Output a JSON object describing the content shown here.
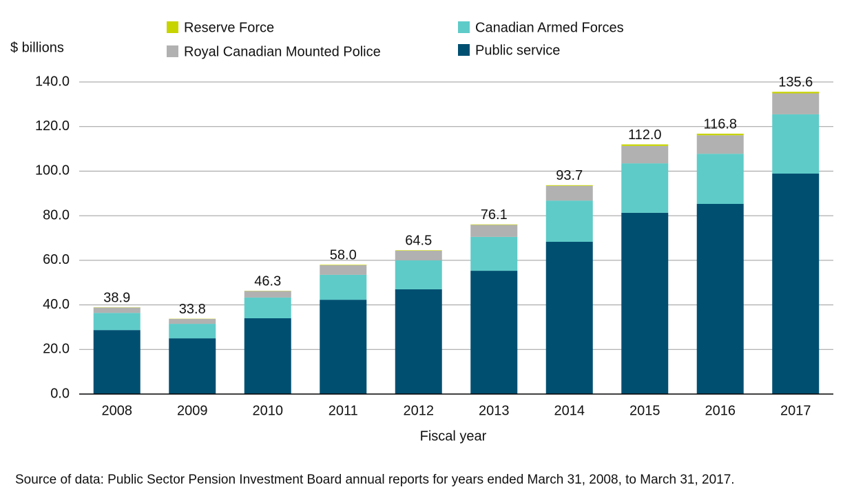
{
  "chart_data": {
    "type": "stacked-bar",
    "y_axis_label": "$ billions",
    "x_axis_label": "Fiscal year",
    "source": "Source of data: Public Sector Pension Investment Board annual reports for years ended March 31, 2008, to March 31, 2017.",
    "categories": [
      "2008",
      "2009",
      "2010",
      "2011",
      "2012",
      "2013",
      "2014",
      "2015",
      "2016",
      "2017"
    ],
    "series": [
      {
        "name": "Public service",
        "color": "#004f71",
        "values": [
          28.7,
          25.0,
          34.0,
          42.3,
          47.0,
          55.3,
          68.3,
          81.3,
          85.3,
          98.9
        ]
      },
      {
        "name": "Canadian Armed Forces",
        "color": "#5ecbc8",
        "values": [
          7.7,
          6.5,
          9.3,
          11.2,
          13.0,
          15.2,
          18.5,
          22.2,
          22.5,
          26.6
        ]
      },
      {
        "name": "Royal Canadian Mounted Police",
        "color": "#b1b1b1",
        "values": [
          2.4,
          2.2,
          2.9,
          4.3,
          4.3,
          5.4,
          6.6,
          7.8,
          8.3,
          9.4
        ]
      },
      {
        "name": "Reserve Force",
        "color": "#c8d400",
        "values": [
          0.1,
          0.1,
          0.1,
          0.2,
          0.2,
          0.2,
          0.3,
          0.7,
          0.7,
          0.7
        ]
      }
    ],
    "totals": [
      38.9,
      33.8,
      46.3,
      58.0,
      64.5,
      76.1,
      93.7,
      112.0,
      116.8,
      135.6
    ],
    "total_labels": [
      "38.9",
      "33.8",
      "46.3",
      "58.0",
      "64.5",
      "76.1",
      "93.7",
      "112.0",
      "116.8",
      "135.6"
    ],
    "ylim": [
      0,
      140
    ],
    "yticks": [
      {
        "value": 0,
        "label": "0.0"
      },
      {
        "value": 20,
        "label": "20.0"
      },
      {
        "value": 40,
        "label": "40.0"
      },
      {
        "value": 60,
        "label": "60.0"
      },
      {
        "value": 80,
        "label": "80.0"
      },
      {
        "value": 100,
        "label": "100.0"
      },
      {
        "value": 120,
        "label": "120.0"
      },
      {
        "value": 140,
        "label": "140.0"
      }
    ],
    "grid": true
  }
}
